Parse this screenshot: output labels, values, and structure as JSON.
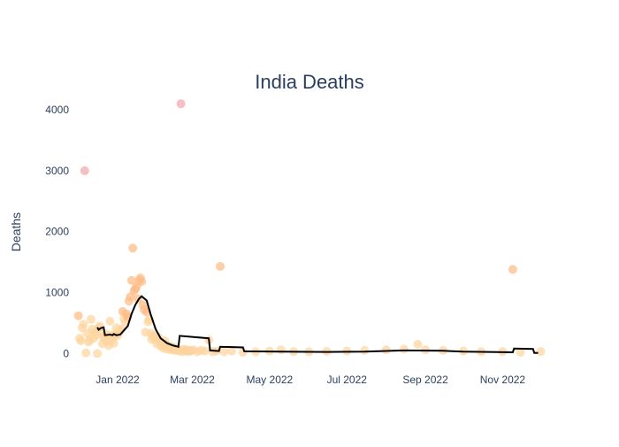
{
  "chart_data": {
    "type": "scatter",
    "title": "India Deaths",
    "xlabel": "",
    "ylabel": "Deaths",
    "x_ticks": [
      "Jan 2022",
      "Mar 2022",
      "May 2022",
      "Jul 2022",
      "Sep 2022",
      "Nov 2022"
    ],
    "y_ticks": [
      "0",
      "1000",
      "2000",
      "3000",
      "4000"
    ],
    "xlim": [
      "2021-11-25",
      "2022-12-07"
    ],
    "ylim": [
      -300,
      4350
    ],
    "grid": false,
    "legend": false,
    "colors": {
      "point_low": "#fdd49e",
      "point_mid": "#fdbb84",
      "point_high": "#f4a6ad",
      "line": "#000000",
      "text": "#2a3f5f"
    },
    "series": [
      {
        "kind": "points",
        "points": [
          {
            "x": "2021-12-01",
            "y": 620
          },
          {
            "x": "2021-12-02",
            "y": 250
          },
          {
            "x": "2021-12-03",
            "y": 210
          },
          {
            "x": "2021-12-04",
            "y": 420
          },
          {
            "x": "2021-12-05",
            "y": 480
          },
          {
            "x": "2021-12-06",
            "y": 3000
          },
          {
            "x": "2021-12-07",
            "y": 10
          },
          {
            "x": "2021-12-08",
            "y": 330
          },
          {
            "x": "2021-12-09",
            "y": 190
          },
          {
            "x": "2021-12-10",
            "y": 220
          },
          {
            "x": "2021-12-11",
            "y": 560
          },
          {
            "x": "2021-12-12",
            "y": 400
          },
          {
            "x": "2021-12-13",
            "y": 250
          },
          {
            "x": "2021-12-14",
            "y": 350
          },
          {
            "x": "2021-12-15",
            "y": 300
          },
          {
            "x": "2021-12-16",
            "y": 0
          },
          {
            "x": "2021-12-17",
            "y": 420
          },
          {
            "x": "2021-12-18",
            "y": 450
          },
          {
            "x": "2021-12-19",
            "y": 340
          },
          {
            "x": "2021-12-20",
            "y": 160
          },
          {
            "x": "2021-12-21",
            "y": 280
          },
          {
            "x": "2021-12-22",
            "y": 220
          },
          {
            "x": "2021-12-23",
            "y": 320
          },
          {
            "x": "2021-12-24",
            "y": 200
          },
          {
            "x": "2021-12-25",
            "y": 130
          },
          {
            "x": "2021-12-26",
            "y": 530
          },
          {
            "x": "2021-12-27",
            "y": 300
          },
          {
            "x": "2021-12-28",
            "y": 230
          },
          {
            "x": "2021-12-29",
            "y": 170
          },
          {
            "x": "2021-12-30",
            "y": 310
          },
          {
            "x": "2021-12-31",
            "y": 420
          },
          {
            "x": "2022-01-01",
            "y": 300
          },
          {
            "x": "2022-01-02",
            "y": 330
          },
          {
            "x": "2022-01-03",
            "y": 370
          },
          {
            "x": "2022-01-04",
            "y": 400
          },
          {
            "x": "2022-01-05",
            "y": 690
          },
          {
            "x": "2022-01-06",
            "y": 580
          },
          {
            "x": "2022-01-07",
            "y": 520
          },
          {
            "x": "2022-01-08",
            "y": 650
          },
          {
            "x": "2022-01-09",
            "y": 600
          },
          {
            "x": "2022-01-10",
            "y": 860
          },
          {
            "x": "2022-01-11",
            "y": 930
          },
          {
            "x": "2022-01-12",
            "y": 1200
          },
          {
            "x": "2022-01-13",
            "y": 1730
          },
          {
            "x": "2022-01-14",
            "y": 1030
          },
          {
            "x": "2022-01-15",
            "y": 1060
          },
          {
            "x": "2022-01-16",
            "y": 1100
          },
          {
            "x": "2022-01-17",
            "y": 900
          },
          {
            "x": "2022-01-18",
            "y": 1200
          },
          {
            "x": "2022-01-19",
            "y": 1240
          },
          {
            "x": "2022-01-20",
            "y": 1180
          },
          {
            "x": "2022-01-21",
            "y": 800
          },
          {
            "x": "2022-01-22",
            "y": 720
          },
          {
            "x": "2022-01-23",
            "y": 350
          },
          {
            "x": "2022-01-24",
            "y": 680
          },
          {
            "x": "2022-01-25",
            "y": 520
          },
          {
            "x": "2022-01-26",
            "y": 560
          },
          {
            "x": "2022-01-27",
            "y": 330
          },
          {
            "x": "2022-01-28",
            "y": 230
          },
          {
            "x": "2022-01-29",
            "y": 280
          },
          {
            "x": "2022-01-30",
            "y": 250
          },
          {
            "x": "2022-01-31",
            "y": 300
          },
          {
            "x": "2022-02-01",
            "y": 160
          },
          {
            "x": "2022-02-02",
            "y": 270
          },
          {
            "x": "2022-02-03",
            "y": 200
          },
          {
            "x": "2022-02-04",
            "y": 120
          },
          {
            "x": "2022-02-05",
            "y": 180
          },
          {
            "x": "2022-02-06",
            "y": 90
          },
          {
            "x": "2022-02-07",
            "y": 210
          },
          {
            "x": "2022-02-08",
            "y": 150
          },
          {
            "x": "2022-02-09",
            "y": 70
          },
          {
            "x": "2022-02-10",
            "y": 130
          },
          {
            "x": "2022-02-11",
            "y": 100
          },
          {
            "x": "2022-02-12",
            "y": 60
          },
          {
            "x": "2022-02-13",
            "y": 110
          },
          {
            "x": "2022-02-14",
            "y": 80
          },
          {
            "x": "2022-02-15",
            "y": 50
          },
          {
            "x": "2022-02-16",
            "y": 90
          },
          {
            "x": "2022-02-17",
            "y": 70
          },
          {
            "x": "2022-02-18",
            "y": 40
          },
          {
            "x": "2022-02-19",
            "y": 60
          },
          {
            "x": "2022-02-20",
            "y": 4100
          },
          {
            "x": "2022-02-21",
            "y": 30
          },
          {
            "x": "2022-02-22",
            "y": 70
          },
          {
            "x": "2022-02-23",
            "y": 50
          },
          {
            "x": "2022-02-24",
            "y": 40
          },
          {
            "x": "2022-02-25",
            "y": 60
          },
          {
            "x": "2022-02-26",
            "y": 30
          },
          {
            "x": "2022-02-27",
            "y": 50
          },
          {
            "x": "2022-02-28",
            "y": 40
          },
          {
            "x": "2022-03-02",
            "y": 60
          },
          {
            "x": "2022-03-05",
            "y": 30
          },
          {
            "x": "2022-03-08",
            "y": 50
          },
          {
            "x": "2022-03-11",
            "y": 40
          },
          {
            "x": "2022-03-14",
            "y": 220
          },
          {
            "x": "2022-03-17",
            "y": 30
          },
          {
            "x": "2022-03-20",
            "y": 40
          },
          {
            "x": "2022-03-23",
            "y": 1430
          },
          {
            "x": "2022-03-26",
            "y": 30
          },
          {
            "x": "2022-04-01",
            "y": 40
          },
          {
            "x": "2022-04-10",
            "y": 20
          },
          {
            "x": "2022-04-20",
            "y": 30
          },
          {
            "x": "2022-05-01",
            "y": 40
          },
          {
            "x": "2022-05-10",
            "y": 60
          },
          {
            "x": "2022-05-20",
            "y": 30
          },
          {
            "x": "2022-06-01",
            "y": 30
          },
          {
            "x": "2022-06-15",
            "y": 35
          },
          {
            "x": "2022-07-01",
            "y": 40
          },
          {
            "x": "2022-07-15",
            "y": 50
          },
          {
            "x": "2022-08-01",
            "y": 60
          },
          {
            "x": "2022-08-15",
            "y": 70
          },
          {
            "x": "2022-08-26",
            "y": 150
          },
          {
            "x": "2022-09-01",
            "y": 60
          },
          {
            "x": "2022-09-15",
            "y": 50
          },
          {
            "x": "2022-10-01",
            "y": 40
          },
          {
            "x": "2022-10-15",
            "y": 30
          },
          {
            "x": "2022-11-01",
            "y": 30
          },
          {
            "x": "2022-11-09",
            "y": 1380
          },
          {
            "x": "2022-11-15",
            "y": 20
          },
          {
            "x": "2022-12-01",
            "y": 30
          }
        ]
      },
      {
        "kind": "line",
        "points": [
          {
            "x": "2021-12-16",
            "y": 430
          },
          {
            "x": "2021-12-17",
            "y": 390
          },
          {
            "x": "2021-12-19",
            "y": 420
          },
          {
            "x": "2021-12-21",
            "y": 430
          },
          {
            "x": "2021-12-22",
            "y": 300
          },
          {
            "x": "2021-12-26",
            "y": 310
          },
          {
            "x": "2021-12-28",
            "y": 300
          },
          {
            "x": "2021-12-29",
            "y": 320
          },
          {
            "x": "2021-12-31",
            "y": 300
          },
          {
            "x": "2022-01-03",
            "y": 310
          },
          {
            "x": "2022-01-06",
            "y": 380
          },
          {
            "x": "2022-01-09",
            "y": 450
          },
          {
            "x": "2022-01-12",
            "y": 650
          },
          {
            "x": "2022-01-15",
            "y": 800
          },
          {
            "x": "2022-01-18",
            "y": 900
          },
          {
            "x": "2022-01-20",
            "y": 940
          },
          {
            "x": "2022-01-24",
            "y": 870
          },
          {
            "x": "2022-01-27",
            "y": 650
          },
          {
            "x": "2022-01-31",
            "y": 400
          },
          {
            "x": "2022-02-04",
            "y": 250
          },
          {
            "x": "2022-02-09",
            "y": 170
          },
          {
            "x": "2022-02-14",
            "y": 130
          },
          {
            "x": "2022-02-18",
            "y": 110
          },
          {
            "x": "2022-02-19",
            "y": 290
          },
          {
            "x": "2022-03-14",
            "y": 250
          },
          {
            "x": "2022-03-15",
            "y": 50
          },
          {
            "x": "2022-03-22",
            "y": 40
          },
          {
            "x": "2022-03-23",
            "y": 110
          },
          {
            "x": "2022-04-10",
            "y": 100
          },
          {
            "x": "2022-04-11",
            "y": 35
          },
          {
            "x": "2022-05-10",
            "y": 30
          },
          {
            "x": "2022-06-15",
            "y": 25
          },
          {
            "x": "2022-07-15",
            "y": 30
          },
          {
            "x": "2022-08-15",
            "y": 50
          },
          {
            "x": "2022-09-15",
            "y": 45
          },
          {
            "x": "2022-10-01",
            "y": 30
          },
          {
            "x": "2022-11-09",
            "y": 20
          },
          {
            "x": "2022-11-10",
            "y": 80
          },
          {
            "x": "2022-11-25",
            "y": 75
          },
          {
            "x": "2022-11-26",
            "y": 10
          },
          {
            "x": "2022-11-29",
            "y": 10
          }
        ]
      }
    ]
  }
}
